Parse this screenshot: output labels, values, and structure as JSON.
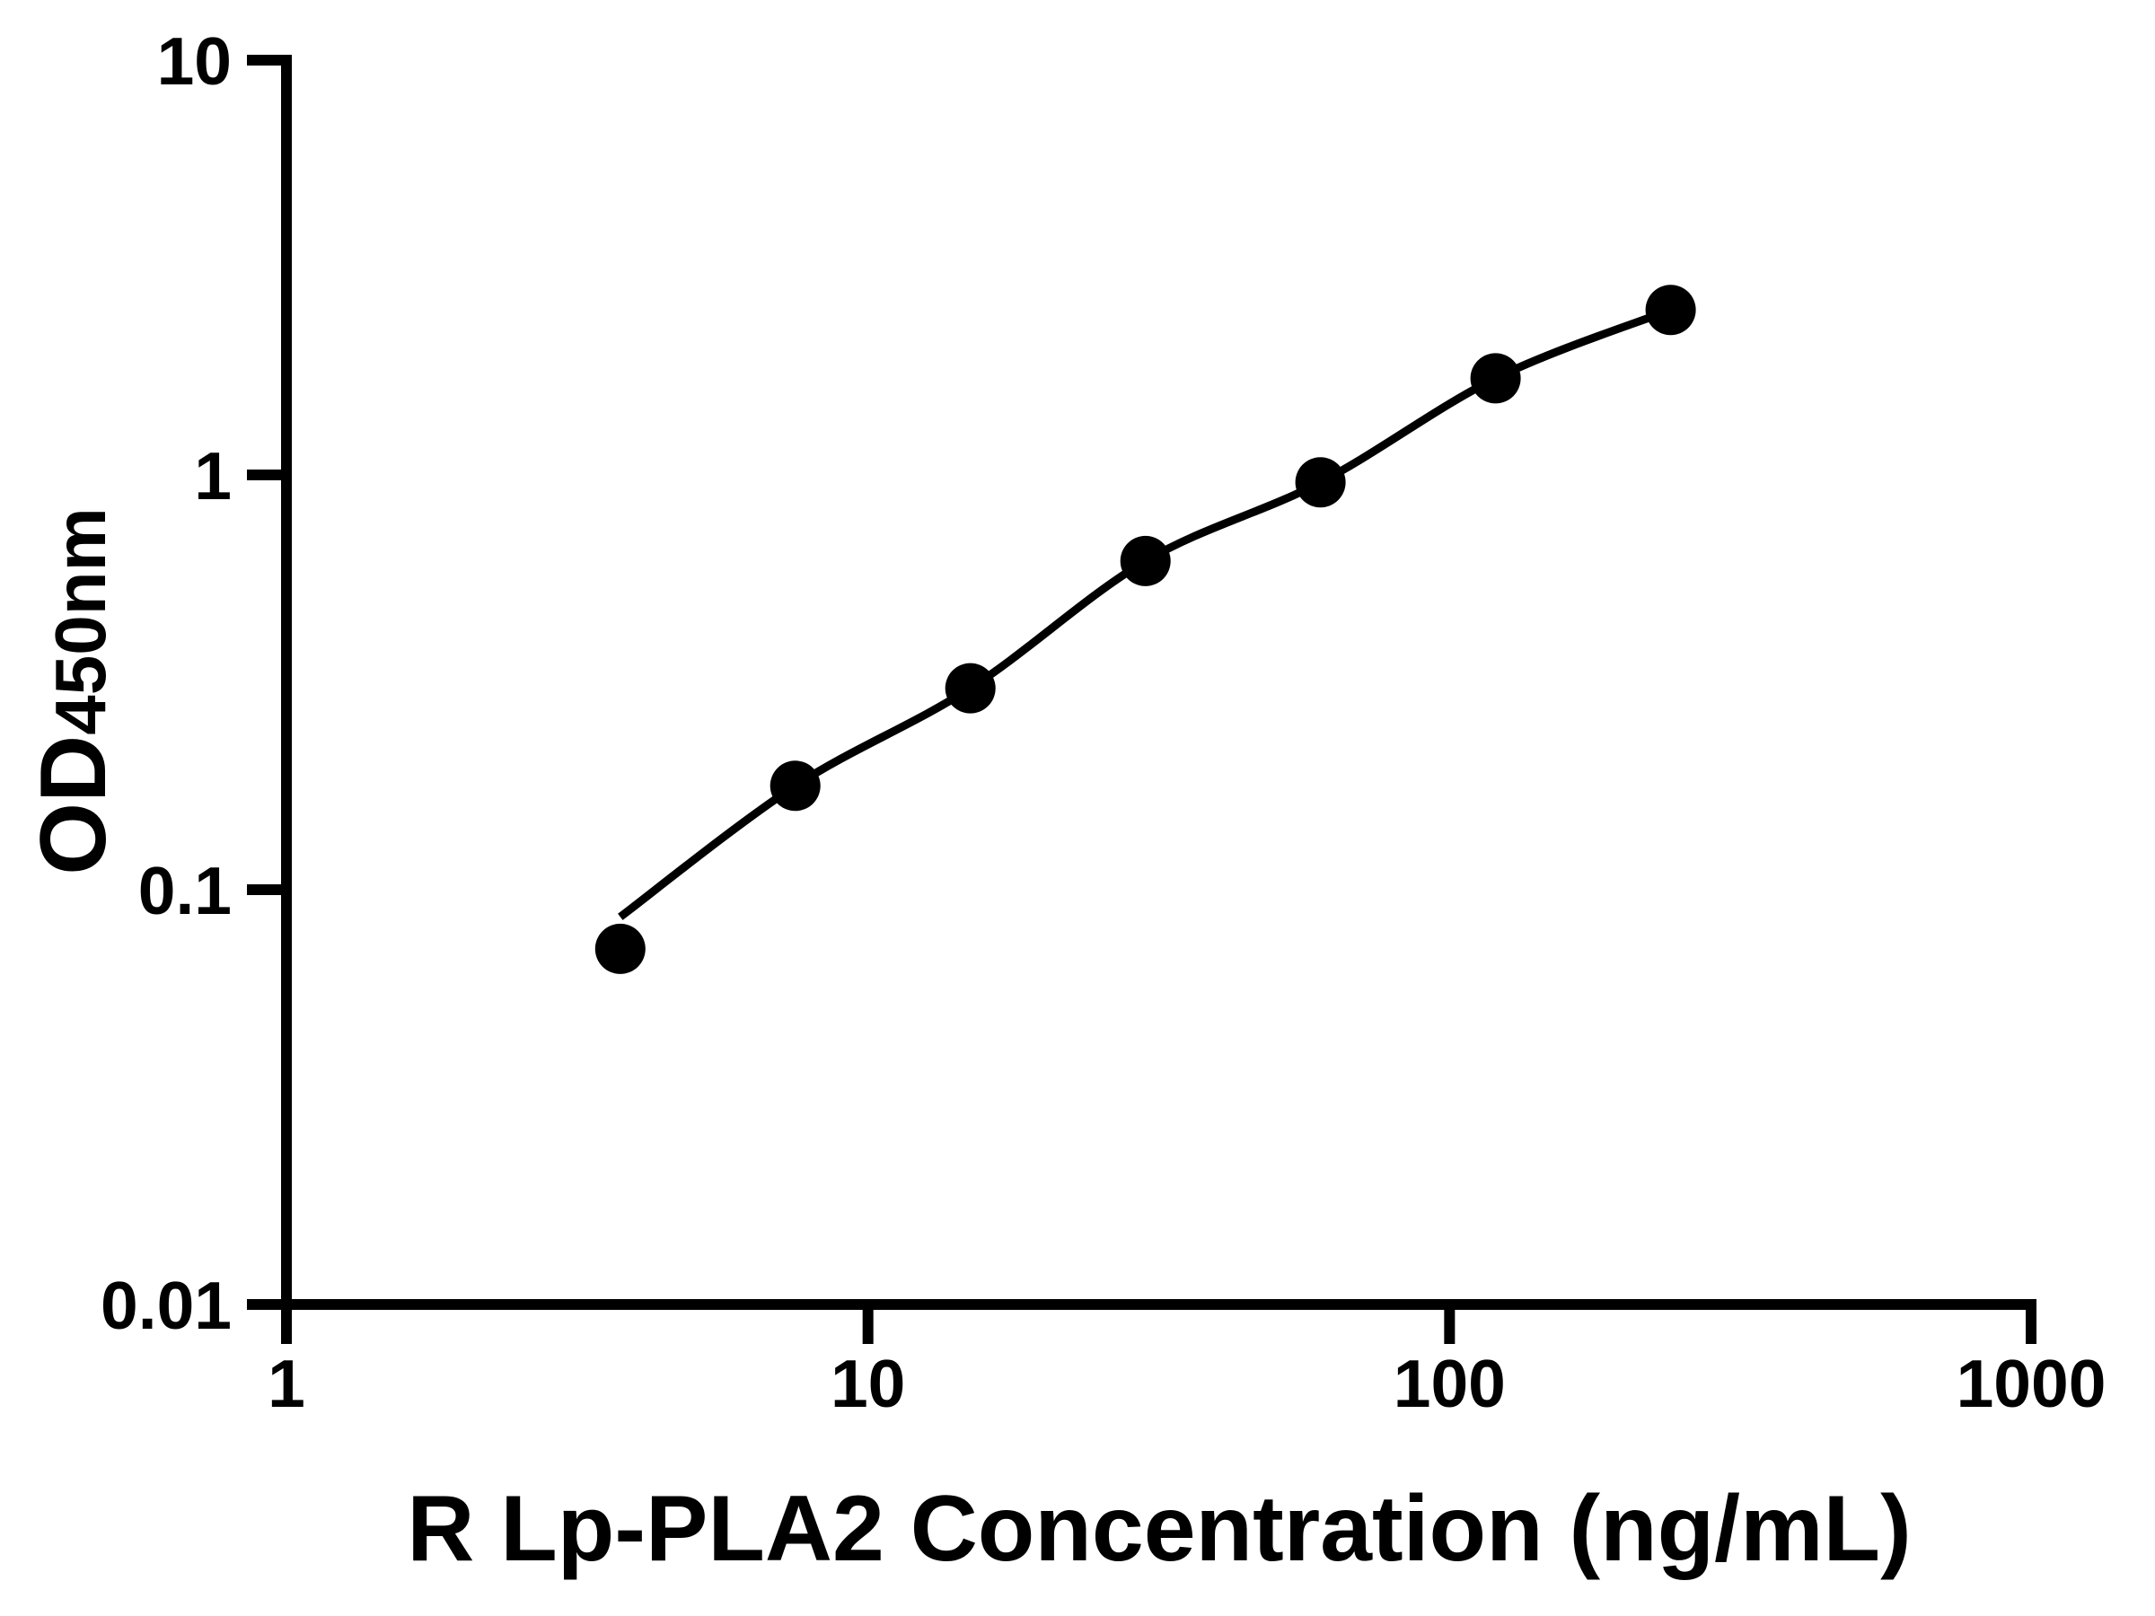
{
  "figure": {
    "background_color": "#ffffff",
    "ink_color": "#000000"
  },
  "chart_data": {
    "type": "scatter",
    "title": "",
    "xlabel": "R Lp-PLA2 Concentration (ng/mL)",
    "ylabel_main": "OD",
    "ylabel_sub": "450nm",
    "x_scale": "log10",
    "y_scale": "log10",
    "xlim": [
      1,
      1000
    ],
    "ylim": [
      0.01,
      10
    ],
    "grid": false,
    "legend_position": "none",
    "x_ticks": [
      {
        "value": 1,
        "label": "1"
      },
      {
        "value": 10,
        "label": "10"
      },
      {
        "value": 100,
        "label": "100"
      },
      {
        "value": 1000,
        "label": "1000"
      }
    ],
    "y_ticks": [
      {
        "value": 10,
        "label": "10"
      },
      {
        "value": 1,
        "label": "1"
      },
      {
        "value": 0.1,
        "label": "0.1"
      },
      {
        "value": 0.01,
        "label": "0.01"
      }
    ],
    "series": [
      {
        "name": "standard-curve-points",
        "marker": "filled-circle",
        "color": "#000000",
        "points": [
          {
            "x": 3.75,
            "y": 0.072
          },
          {
            "x": 7.5,
            "y": 0.178
          },
          {
            "x": 15,
            "y": 0.306
          },
          {
            "x": 30,
            "y": 0.62
          },
          {
            "x": 60,
            "y": 0.96
          },
          {
            "x": 120,
            "y": 1.71
          },
          {
            "x": 240,
            "y": 2.5
          }
        ]
      }
    ],
    "fit_curve": {
      "name": "4pl-fit-line",
      "color": "#000000",
      "points": [
        [
          3.75,
          0.086
        ],
        [
          7.5,
          0.178
        ],
        [
          15,
          0.306
        ],
        [
          30,
          0.62
        ],
        [
          60,
          0.96
        ],
        [
          120,
          1.71
        ],
        [
          240,
          2.5
        ]
      ]
    }
  }
}
